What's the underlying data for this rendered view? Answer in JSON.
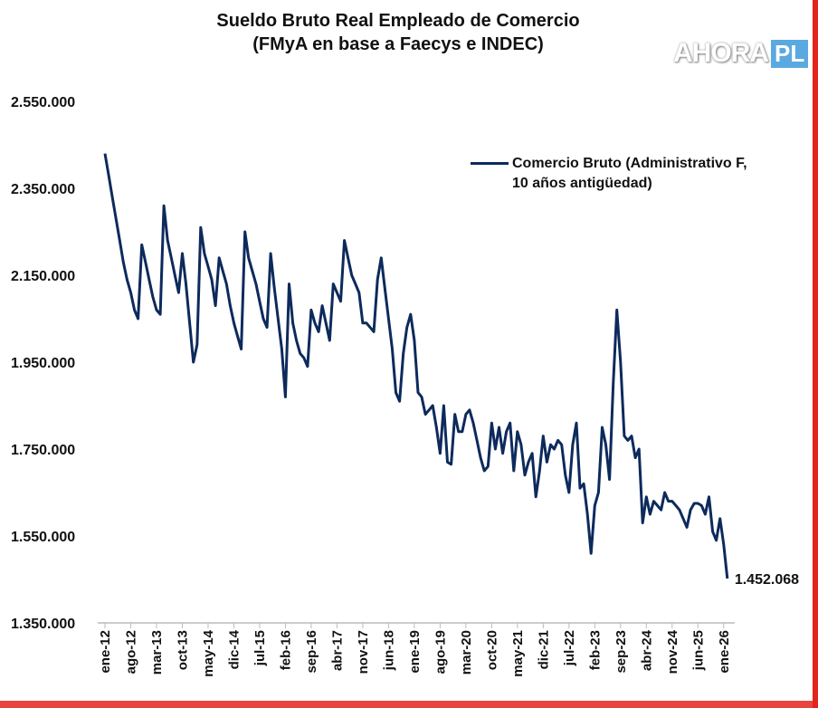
{
  "chart_data": {
    "type": "line",
    "title": "Sueldo Bruto Real Empleado de Comercio",
    "subtitle": "(FMyA en base a Faecys e INDEC)",
    "ylim": [
      1350000,
      2550000
    ],
    "yticks": [
      "2.550.000",
      "2.350.000",
      "2.150.000",
      "1.950.000",
      "1.750.000",
      "1.550.000",
      "1.350.000"
    ],
    "ytick_values": [
      2550000,
      2350000,
      2150000,
      1950000,
      1750000,
      1550000,
      1350000
    ],
    "xticks": [
      "ene-12",
      "ago-12",
      "mar-13",
      "oct-13",
      "may-14",
      "dic-14",
      "jul-15",
      "feb-16",
      "sep-16",
      "abr-17",
      "nov-17",
      "jun-18",
      "ene-19",
      "ago-19",
      "mar-20",
      "oct-20",
      "may-21",
      "dic-21",
      "jul-22",
      "feb-23",
      "sep-23",
      "abr-24",
      "nov-24",
      "jun-25",
      "ene-26"
    ],
    "grid": false,
    "legend_position": "top-right",
    "end_label": "1.452.068",
    "series": [
      {
        "name": "Comercio Bruto (Administrativo F, 10 años antigüedad)",
        "line1": "Comercio Bruto (Administrativo F,",
        "line2": "10 años antigüedad)",
        "color": "#0d2a5c",
        "x_start": "ene-12",
        "x_end": "feb-26",
        "values": [
          2430000,
          2380000,
          2330000,
          2280000,
          2230000,
          2180000,
          2140000,
          2110000,
          2070000,
          2050000,
          2220000,
          2180000,
          2140000,
          2100000,
          2070000,
          2060000,
          2310000,
          2230000,
          2190000,
          2150000,
          2110000,
          2200000,
          2130000,
          2040000,
          1950000,
          1990000,
          2260000,
          2200000,
          2170000,
          2140000,
          2080000,
          2190000,
          2160000,
          2130000,
          2080000,
          2040000,
          2010000,
          1980000,
          2250000,
          2190000,
          2160000,
          2130000,
          2090000,
          2050000,
          2030000,
          2200000,
          2120000,
          2050000,
          1980000,
          1870000,
          2130000,
          2040000,
          2000000,
          1970000,
          1960000,
          1940000,
          2070000,
          2040000,
          2020000,
          2080000,
          2040000,
          2000000,
          2130000,
          2110000,
          2090000,
          2230000,
          2190000,
          2150000,
          2130000,
          2110000,
          2040000,
          2040000,
          2030000,
          2020000,
          2140000,
          2190000,
          2120000,
          2050000,
          1980000,
          1880000,
          1860000,
          1970000,
          2030000,
          2060000,
          2000000,
          1880000,
          1870000,
          1830000,
          1840000,
          1850000,
          1800000,
          1740000,
          1850000,
          1720000,
          1715000,
          1830000,
          1790000,
          1790000,
          1830000,
          1840000,
          1810000,
          1770000,
          1730000,
          1700000,
          1710000,
          1810000,
          1750000,
          1800000,
          1740000,
          1790000,
          1810000,
          1700000,
          1790000,
          1760000,
          1690000,
          1720000,
          1740000,
          1640000,
          1700000,
          1780000,
          1720000,
          1760000,
          1750000,
          1770000,
          1760000,
          1690000,
          1650000,
          1760000,
          1810000,
          1660000,
          1670000,
          1600000,
          1510000,
          1620000,
          1650000,
          1800000,
          1760000,
          1680000,
          1900000,
          2070000,
          1950000,
          1780000,
          1770000,
          1780000,
          1730000,
          1750000,
          1580000,
          1640000,
          1600000,
          1630000,
          1620000,
          1610000,
          1650000,
          1630000,
          1630000,
          1620000,
          1610000,
          1590000,
          1570000,
          1610000,
          1625000,
          1625000,
          1620000,
          1600000,
          1640000,
          1560000,
          1540000,
          1590000,
          1530000,
          1452068
        ]
      }
    ]
  },
  "watermark": {
    "text": "AHORA PL",
    "main": "AHORA",
    "tail": "PL"
  },
  "colors": {
    "line": "#0d2a5c",
    "frame": "#e3251b",
    "logo_tail": "#5aa9e0"
  }
}
